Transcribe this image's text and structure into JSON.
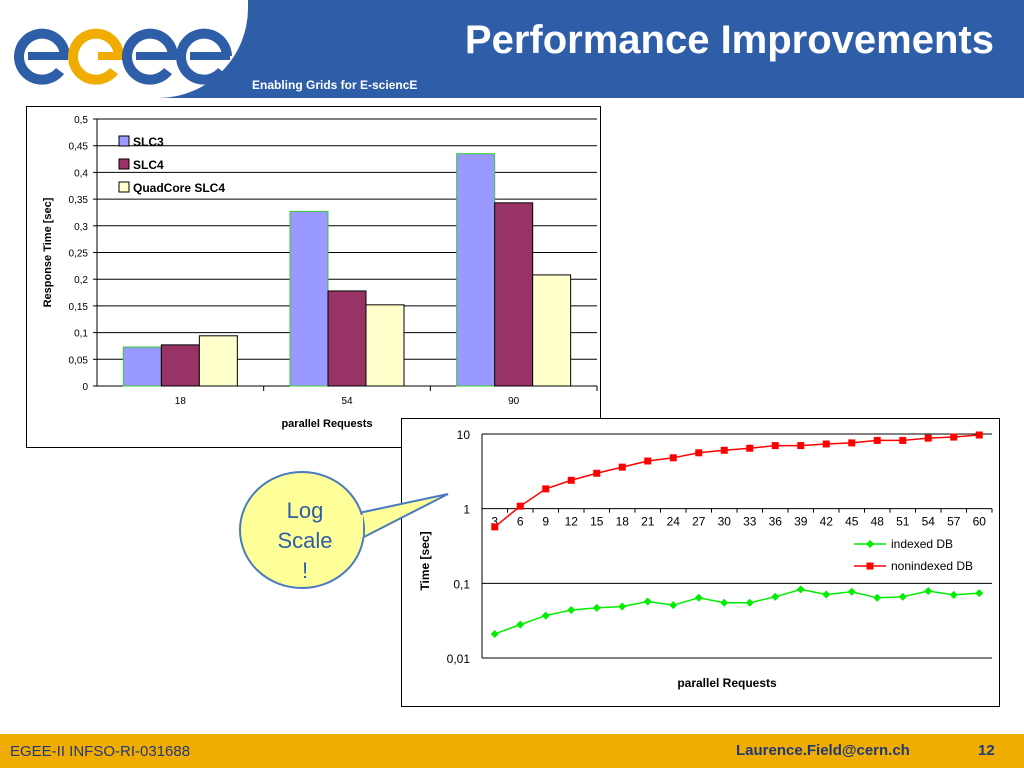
{
  "header": {
    "logo": "egee",
    "title": "Performance Improvements",
    "subtitle": "Enabling Grids for E-sciencE"
  },
  "footer": {
    "project": "EGEE-II INFSO-RI-031688",
    "email": "Laurence.Field@cern.ch",
    "page_number": "12"
  },
  "callout": {
    "lines": [
      "Log",
      "Scale",
      "!"
    ]
  },
  "chart_data": [
    {
      "type": "bar",
      "categories": [
        "18",
        "54",
        "90"
      ],
      "series": [
        {
          "name": "SLC3",
          "values": [
            0.073,
            0.327,
            0.435
          ],
          "color": "#9999ff"
        },
        {
          "name": "SLC4",
          "values": [
            0.077,
            0.178,
            0.343
          ],
          "color": "#993366"
        },
        {
          "name": "QuadCore SLC4",
          "values": [
            0.094,
            0.152,
            0.208
          ],
          "color": "#ffffcc"
        }
      ],
      "yticks": [
        "0",
        "0,05",
        "0,1",
        "0,15",
        "0,2",
        "0,25",
        "0,3",
        "0,35",
        "0,4",
        "0,45",
        "0,5"
      ],
      "xlabel": "parallel Requests",
      "ylabel": "Response Time [sec]",
      "ylim": [
        0,
        0.5
      ],
      "grid": true,
      "legend": "top-left"
    },
    {
      "type": "line",
      "x": [
        "3",
        "6",
        "9",
        "12",
        "15",
        "18",
        "21",
        "24",
        "27",
        "30",
        "33",
        "36",
        "39",
        "42",
        "45",
        "48",
        "51",
        "54",
        "57",
        "60"
      ],
      "series": [
        {
          "name": "indexed DB",
          "color": "#00ee00",
          "marker": "diamond",
          "values": [
            0.021,
            0.028,
            0.037,
            0.044,
            0.047,
            0.049,
            0.057,
            0.051,
            0.064,
            0.055,
            0.055,
            0.066,
            0.083,
            0.071,
            0.077,
            0.064,
            0.066,
            0.079,
            0.07,
            0.074
          ]
        },
        {
          "name": "nonindexed DB",
          "color": "#ff0000",
          "marker": "square",
          "values": [
            0.57,
            1.08,
            1.84,
            2.4,
            2.98,
            3.6,
            4.35,
            4.8,
            5.6,
            6.05,
            6.45,
            7.0,
            7.0,
            7.35,
            7.6,
            8.2,
            8.2,
            8.8,
            9.1,
            9.7
          ]
        }
      ],
      "yticks": [
        "0,01",
        "0,1",
        "1",
        "10"
      ],
      "yscale": "log",
      "ylim": [
        0.01,
        10
      ],
      "xlabel": "parallel Requests",
      "ylabel": "Time [sec]",
      "grid": true,
      "legend": "right"
    }
  ]
}
